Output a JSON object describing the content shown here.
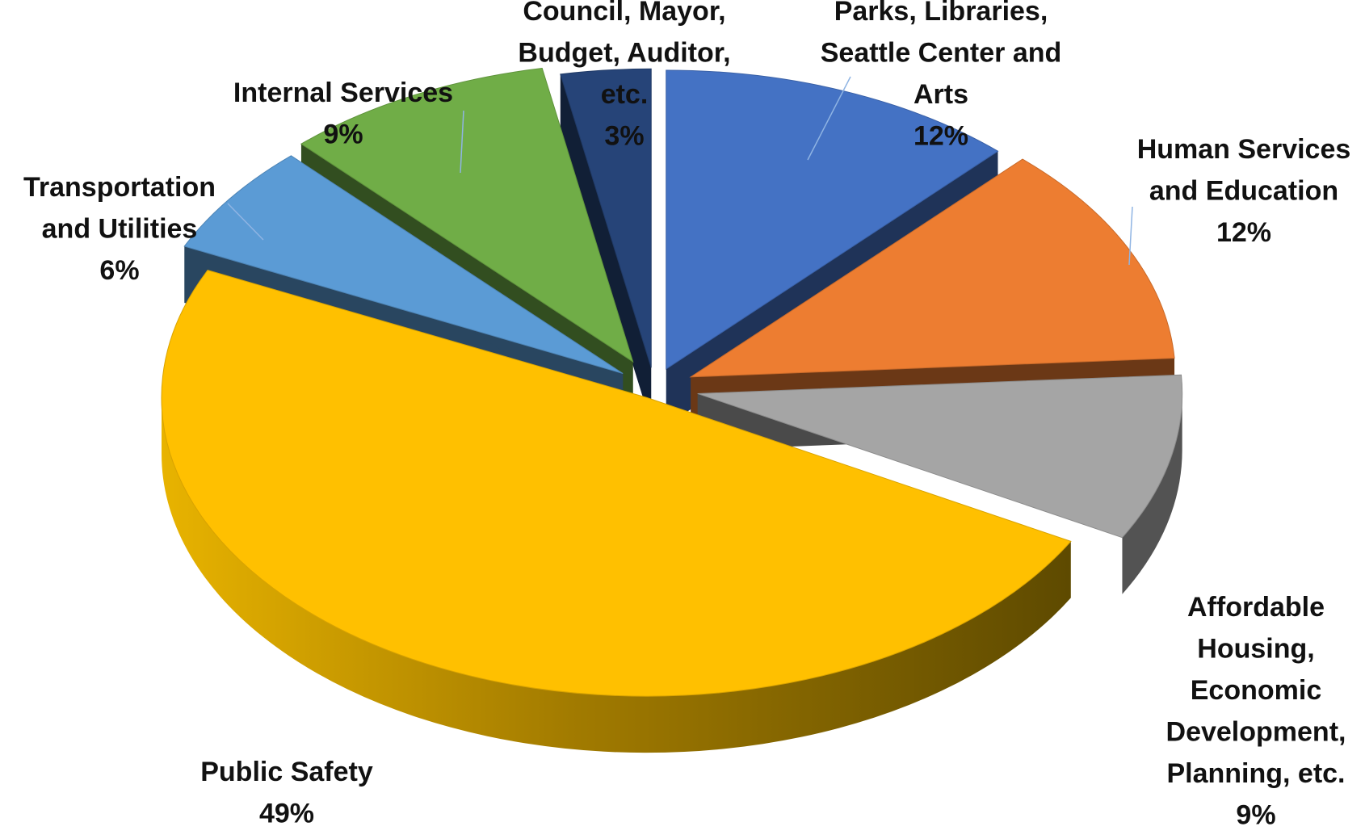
{
  "chart_data": {
    "type": "pie",
    "style": "3d-exploded",
    "slices": [
      {
        "label_lines": [
          "Parks, Libraries,",
          "Seattle Center and",
          "Arts"
        ],
        "percent_label": "12%",
        "value": 12,
        "color": "#4472C4"
      },
      {
        "label_lines": [
          "Human Services",
          "and Education"
        ],
        "percent_label": "12%",
        "value": 12,
        "color": "#ED7D31"
      },
      {
        "label_lines": [
          "Affordable",
          "Housing,",
          "Economic",
          "Development,",
          "Planning, etc."
        ],
        "percent_label": "9%",
        "value": 9,
        "color": "#A5A5A5"
      },
      {
        "label_lines": [
          "Public Safety"
        ],
        "percent_label": "49%",
        "value": 49,
        "color": "#FFC000"
      },
      {
        "label_lines": [
          "Transportation",
          "and Utilities"
        ],
        "percent_label": "6%",
        "value": 6,
        "color": "#5B9BD5"
      },
      {
        "label_lines": [
          "Internal Services"
        ],
        "percent_label": "9%",
        "value": 9,
        "color": "#70AD47"
      },
      {
        "label_lines": [
          "Council, Mayor,",
          "Budget, Auditor,",
          "etc."
        ],
        "percent_label": "3%",
        "value": 3,
        "color": "#264478"
      }
    ]
  }
}
